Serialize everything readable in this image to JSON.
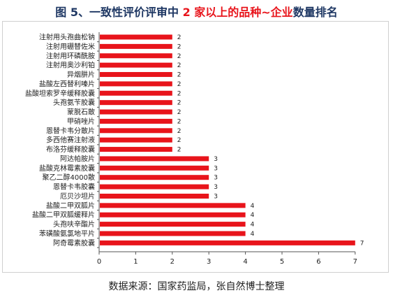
{
  "title": {
    "prefix": "图 5、一致性评价评审中 ",
    "highlight": "2 家以上的品种~企业",
    "suffix": "数量排名"
  },
  "source_note": "数据来源：国家药监局，张自然博士整理",
  "colors": {
    "bar": "#e8141b",
    "title": "#1f3864",
    "highlight": "#e8141b"
  },
  "chart_data": {
    "type": "bar",
    "orientation": "horizontal",
    "title": "图 5、一致性评价评审中 2 家以上的品种~企业数量排名",
    "categories": [
      "注射用头孢曲松钠",
      "注射用硼替佐米",
      "注射用环磷酰胺",
      "注射用奥沙利铂",
      "异烟肼片",
      "盐酸左西替利嗪片",
      "盐酸坦索罗辛缓释胶囊",
      "头孢氨苄胶囊",
      "蒙脱石散",
      "甲硝唑片",
      "恩替卡韦分散片",
      "多西他赛注射液",
      "布洛芬缓释胶囊",
      "阿达帕胺片",
      "盐酸克林霉素胶囊",
      "聚乙二醇4000散",
      "恩替卡韦胶囊",
      "厄贝沙坦片",
      "盐酸二甲双胍片",
      "盐酸二甲双胍缓释片",
      "头孢呋辛酯片",
      "苯磺酸氨氯地平片",
      "阿奇霉素胶囊"
    ],
    "values": [
      2,
      2,
      2,
      2,
      2,
      2,
      2,
      2,
      2,
      2,
      2,
      2,
      2,
      3,
      3,
      3,
      3,
      3,
      4,
      4,
      4,
      4,
      7
    ],
    "xlim": [
      0,
      7
    ],
    "xticks": [
      "0",
      "1",
      "2",
      "3",
      "4",
      "5",
      "6",
      "7"
    ],
    "data_labels": true,
    "grid": false,
    "legend": "none"
  }
}
